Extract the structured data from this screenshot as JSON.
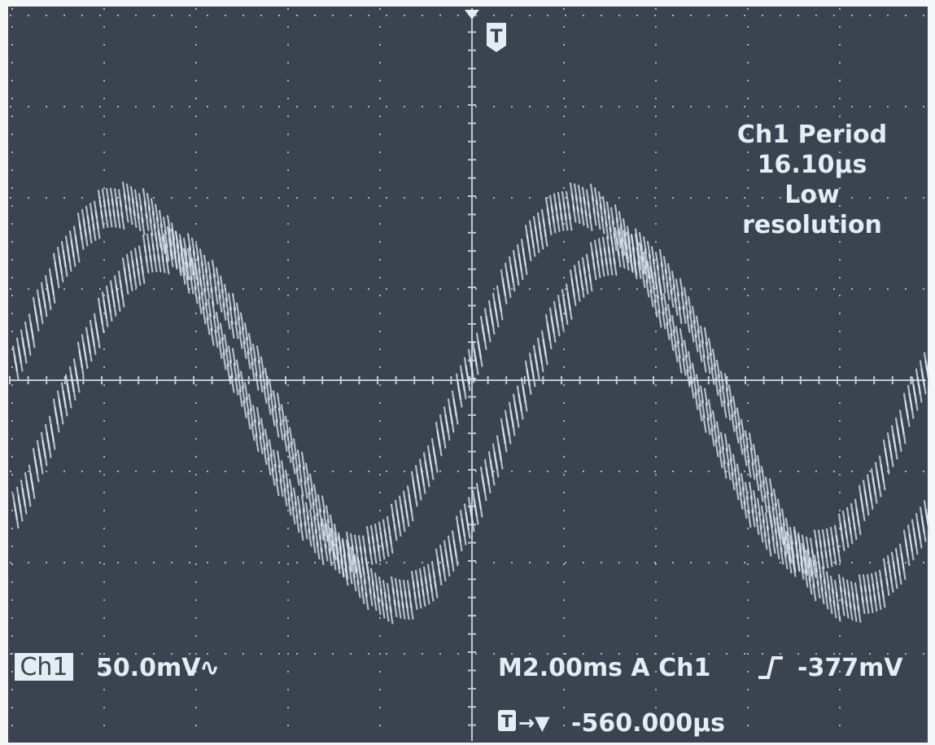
{
  "trigger_marker": "T",
  "measurement": {
    "label": "Ch1 Period",
    "value": "16.10µs",
    "note_lines": [
      "Low",
      "resolution"
    ]
  },
  "channel": {
    "name": "Ch1",
    "scale": "50.0mV",
    "coupling": "∿"
  },
  "timebase": {
    "text": "M2.00ms A Ch1",
    "level": "-377mV"
  },
  "position": {
    "marker": "T",
    "arrow": "→▼",
    "value": "-560.000µs"
  }
}
